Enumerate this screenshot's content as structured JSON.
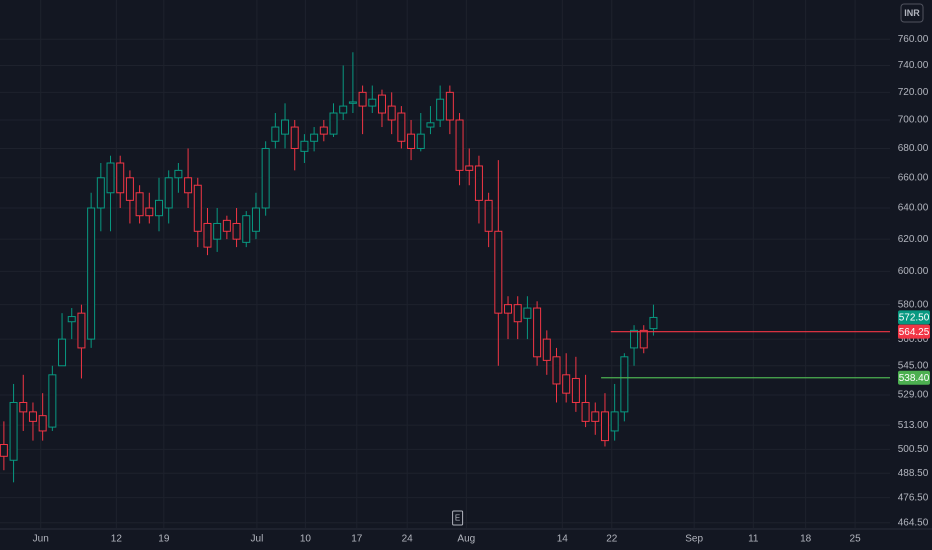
{
  "chart_data": {
    "type": "candlestick",
    "currency": "INR",
    "log_scale": true,
    "grid": true,
    "up_color": "#089981",
    "down_color": "#f23645",
    "categories": [
      null,
      null,
      null,
      null,
      null,
      null,
      null,
      null,
      null,
      null,
      null,
      null,
      null,
      null,
      null,
      null,
      null,
      null,
      null,
      null,
      null,
      null,
      null,
      null,
      null,
      null,
      null,
      null,
      null,
      null,
      null,
      null,
      null,
      null,
      null,
      null,
      null,
      null,
      null,
      null,
      null,
      null,
      null,
      null,
      null,
      null,
      null,
      null,
      null,
      null,
      null,
      null,
      null,
      null,
      null,
      null,
      null,
      null,
      null,
      null,
      null,
      null,
      null,
      null,
      null,
      null,
      null,
      null
    ],
    "open": [
      503,
      495,
      525,
      520,
      518,
      512,
      545,
      570,
      575,
      560,
      640,
      650,
      670,
      660,
      650,
      640,
      635,
      640,
      660,
      660,
      655,
      630,
      620,
      632,
      630,
      618,
      625,
      640,
      685,
      690,
      695,
      678,
      685,
      695,
      690,
      705,
      712,
      720,
      710,
      718,
      710,
      705,
      690,
      680,
      695,
      700,
      720,
      700,
      668,
      668,
      645,
      625,
      580,
      580,
      572,
      578,
      560,
      550,
      540,
      538,
      525,
      520,
      520,
      510,
      520,
      555,
      565,
      566
    ],
    "high": [
      515,
      535,
      540,
      525,
      530,
      545,
      575,
      578,
      580,
      650,
      670,
      675,
      675,
      665,
      655,
      650,
      660,
      665,
      670,
      680,
      660,
      640,
      640,
      635,
      640,
      638,
      650,
      685,
      705,
      712,
      700,
      690,
      695,
      700,
      712,
      740,
      750,
      725,
      725,
      722,
      720,
      710,
      700,
      705,
      710,
      725,
      725,
      705,
      680,
      675,
      650,
      672,
      585,
      585,
      585,
      582,
      565,
      555,
      552,
      550,
      540,
      525,
      530,
      535,
      552,
      568,
      568,
      580
    ],
    "low": [
      490,
      484,
      510,
      505,
      505,
      510,
      545,
      560,
      538,
      555,
      625,
      625,
      640,
      630,
      630,
      630,
      625,
      630,
      650,
      640,
      615,
      610,
      612,
      620,
      615,
      615,
      620,
      635,
      680,
      680,
      665,
      670,
      678,
      685,
      688,
      700,
      705,
      690,
      705,
      695,
      690,
      680,
      672,
      678,
      690,
      695,
      690,
      655,
      655,
      630,
      615,
      545,
      560,
      560,
      560,
      545,
      540,
      525,
      525,
      520,
      512,
      508,
      502,
      505,
      515,
      545,
      552,
      562
    ],
    "close": [
      497,
      525,
      520,
      515,
      510,
      540,
      560,
      573,
      555,
      640,
      660,
      670,
      650,
      645,
      635,
      635,
      645,
      660,
      665,
      650,
      625,
      615,
      630,
      625,
      620,
      635,
      640,
      680,
      695,
      700,
      680,
      685,
      690,
      690,
      705,
      710,
      713,
      710,
      715,
      705,
      700,
      685,
      680,
      690,
      698,
      715,
      700,
      665,
      665,
      645,
      625,
      575,
      575,
      570,
      578,
      550,
      548,
      535,
      530,
      525,
      515,
      515,
      505,
      520,
      550,
      565,
      555,
      572.5
    ],
    "xlim": [
      -0.4,
      91.4
    ],
    "xticks": [
      {
        "value": 3.8,
        "label": "Jun"
      },
      {
        "value": 11.6,
        "label": "12"
      },
      {
        "value": 16.5,
        "label": "19"
      },
      {
        "value": 26.1,
        "label": "Jul"
      },
      {
        "value": 31.1,
        "label": "10"
      },
      {
        "value": 36.4,
        "label": "17"
      },
      {
        "value": 41.6,
        "label": "24"
      },
      {
        "value": 47.7,
        "label": "Aug"
      },
      {
        "value": 57.6,
        "label": "14"
      },
      {
        "value": 62.7,
        "label": "22"
      },
      {
        "value": 71.2,
        "label": "Sep"
      },
      {
        "value": 77.3,
        "label": "11"
      },
      {
        "value": 82.7,
        "label": "18"
      },
      {
        "value": 87.8,
        "label": "25"
      }
    ],
    "ylim": [
      462,
      791
    ],
    "yticks": [
      {
        "value": 760,
        "label": "760.00"
      },
      {
        "value": 740,
        "label": "740.00"
      },
      {
        "value": 720,
        "label": "720.00"
      },
      {
        "value": 700,
        "label": "700.00"
      },
      {
        "value": 680,
        "label": "680.00"
      },
      {
        "value": 660,
        "label": "660.00"
      },
      {
        "value": 640,
        "label": "640.00"
      },
      {
        "value": 620,
        "label": "620.00"
      },
      {
        "value": 600,
        "label": "600.00"
      },
      {
        "value": 580,
        "label": "580.00"
      },
      {
        "value": 560,
        "label": "560.00"
      },
      {
        "value": 545,
        "label": "545.00"
      },
      {
        "value": 529,
        "label": "529.00"
      },
      {
        "value": 513,
        "label": "513.00"
      },
      {
        "value": 500.5,
        "label": "500.50"
      },
      {
        "value": 488.5,
        "label": "488.50"
      },
      {
        "value": 476.5,
        "label": "476.50"
      },
      {
        "value": 464.5,
        "label": "464.50"
      }
    ],
    "levels": [
      {
        "value": 564.25,
        "label": "564.25",
        "color": "#f23645",
        "from": 62.6
      },
      {
        "value": 538.4,
        "label": "538.40",
        "color": "#4caf50",
        "from": 61.6
      }
    ],
    "last_price": {
      "value": 572.5,
      "label": "572.50",
      "color": "#089981"
    },
    "annotations": [
      {
        "label": "E",
        "x": 46.8
      }
    ]
  }
}
